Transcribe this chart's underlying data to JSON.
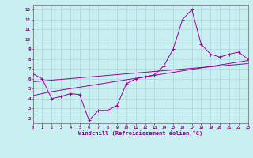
{
  "xlabel": "Windchill (Refroidissement éolien,°C)",
  "bg_color": "#c8f0f0",
  "line_color": "#990099",
  "grid_color": "#aaccd8",
  "x_data": [
    0,
    1,
    2,
    3,
    4,
    5,
    6,
    7,
    8,
    9,
    10,
    11,
    12,
    13,
    14,
    15,
    16,
    17,
    18,
    19,
    20,
    21,
    22,
    23
  ],
  "y_main": [
    6.5,
    6.0,
    4.0,
    4.2,
    4.5,
    4.4,
    1.8,
    2.8,
    2.8,
    3.3,
    5.5,
    6.0,
    6.2,
    6.4,
    7.3,
    9.0,
    12.0,
    13.0,
    9.5,
    8.5,
    8.2,
    8.5,
    8.7,
    8.0
  ],
  "y_reg1": [
    4.3,
    4.5,
    4.7,
    4.85,
    5.0,
    5.15,
    5.3,
    5.45,
    5.6,
    5.75,
    5.9,
    6.05,
    6.2,
    6.35,
    6.5,
    6.65,
    6.8,
    6.95,
    7.1,
    7.25,
    7.4,
    7.55,
    7.7,
    7.85
  ],
  "y_reg2": [
    5.7,
    5.78,
    5.86,
    5.94,
    6.02,
    6.1,
    6.18,
    6.26,
    6.34,
    6.42,
    6.5,
    6.58,
    6.66,
    6.74,
    6.82,
    6.9,
    6.98,
    7.06,
    7.14,
    7.22,
    7.3,
    7.38,
    7.46,
    7.54
  ],
  "xlim": [
    0,
    23
  ],
  "ylim": [
    1.5,
    13.5
  ],
  "yticks": [
    2,
    3,
    4,
    5,
    6,
    7,
    8,
    9,
    10,
    11,
    12,
    13
  ],
  "xticks": [
    0,
    1,
    2,
    3,
    4,
    5,
    6,
    7,
    8,
    9,
    10,
    11,
    12,
    13,
    14,
    15,
    16,
    17,
    18,
    19,
    20,
    21,
    22,
    23
  ]
}
